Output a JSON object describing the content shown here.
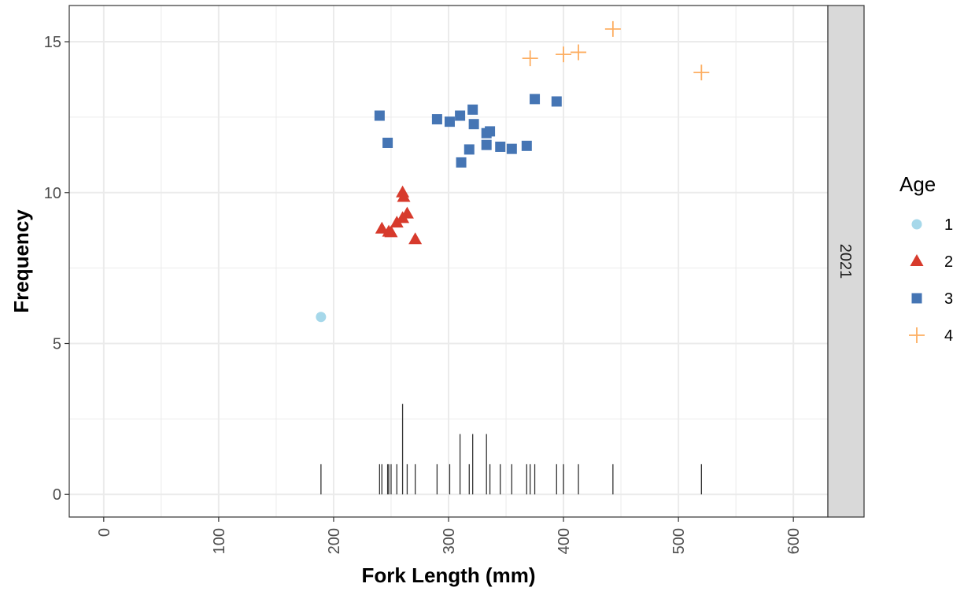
{
  "chart_data": {
    "type": "scatter",
    "title": "",
    "xlabel": "Fork Length (mm)",
    "ylabel": "Frequency",
    "xlim": [
      -30,
      630
    ],
    "ylim": [
      -0.75,
      16.2
    ],
    "xticks": [
      0,
      100,
      200,
      300,
      400,
      500,
      600
    ],
    "yticks": [
      0,
      5,
      10,
      15
    ],
    "grid": true,
    "facet_label": "2021",
    "legend": {
      "title": "Age",
      "placement": "right"
    },
    "series": [
      {
        "name": "1",
        "shape": "circle",
        "color": "#a6d8ea",
        "points": [
          [
            189,
            5.88
          ]
        ]
      },
      {
        "name": "2",
        "shape": "triangle",
        "color": "#d73a2c",
        "points": [
          [
            242,
            8.8
          ],
          [
            248,
            8.7
          ],
          [
            250,
            8.68
          ],
          [
            255,
            9.0
          ],
          [
            260,
            10.0
          ],
          [
            261,
            9.85
          ],
          [
            260,
            9.15
          ],
          [
            264,
            9.3
          ],
          [
            271,
            8.45
          ]
        ]
      },
      {
        "name": "3",
        "shape": "square",
        "color": "#4575b4",
        "points": [
          [
            240,
            12.55
          ],
          [
            247,
            11.65
          ],
          [
            290,
            12.43
          ],
          [
            301,
            12.35
          ],
          [
            310,
            12.55
          ],
          [
            311,
            11.0
          ],
          [
            318,
            11.43
          ],
          [
            321,
            12.75
          ],
          [
            322,
            12.27
          ],
          [
            333,
            11.97
          ],
          [
            333,
            11.58
          ],
          [
            336,
            12.03
          ],
          [
            345,
            11.52
          ],
          [
            355,
            11.45
          ],
          [
            368,
            11.55
          ],
          [
            375,
            13.1
          ],
          [
            394,
            13.02
          ]
        ]
      },
      {
        "name": "4",
        "shape": "plus",
        "color": "#fdae61",
        "points": [
          [
            371,
            14.45
          ],
          [
            400,
            14.58
          ],
          [
            413,
            14.65
          ],
          [
            443,
            15.42
          ],
          [
            520,
            13.98
          ]
        ]
      }
    ],
    "histogram": {
      "type": "bar",
      "color": "#333333",
      "bins": [
        [
          189,
          1
        ],
        [
          240,
          1
        ],
        [
          242,
          1
        ],
        [
          247,
          1
        ],
        [
          248,
          1
        ],
        [
          250,
          1
        ],
        [
          255,
          1
        ],
        [
          260,
          3
        ],
        [
          264,
          1
        ],
        [
          271,
          1
        ],
        [
          290,
          1
        ],
        [
          301,
          1
        ],
        [
          310,
          2
        ],
        [
          318,
          1
        ],
        [
          321,
          2
        ],
        [
          333,
          2
        ],
        [
          336,
          1
        ],
        [
          345,
          1
        ],
        [
          355,
          1
        ],
        [
          368,
          1
        ],
        [
          371,
          1
        ],
        [
          375,
          1
        ],
        [
          394,
          1
        ],
        [
          400,
          1
        ],
        [
          413,
          1
        ],
        [
          443,
          1
        ],
        [
          520,
          1
        ]
      ]
    }
  }
}
